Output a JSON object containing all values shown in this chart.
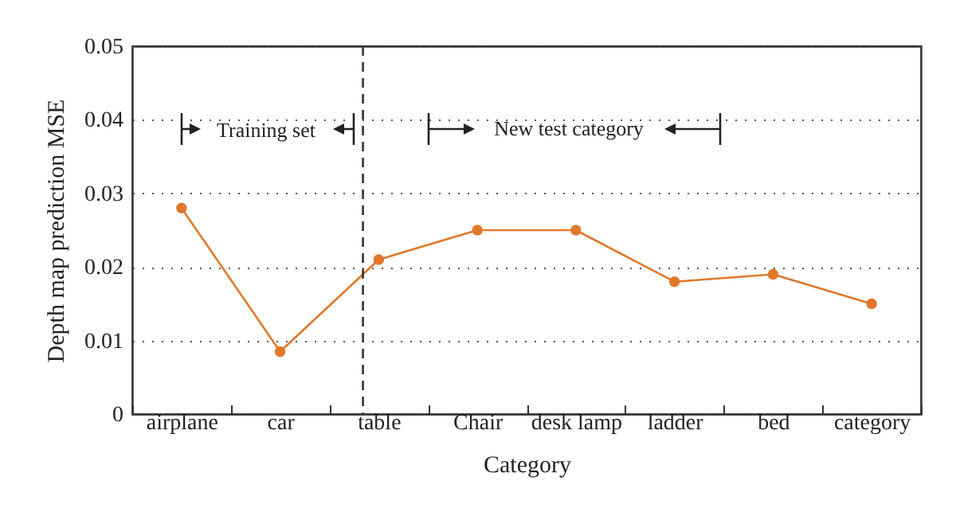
{
  "chart_data": {
    "type": "line",
    "xlabel": "Category",
    "ylabel": "Depth map prediction MSE",
    "categories": [
      "airplane",
      "car",
      "table",
      "Chair",
      "desk lamp",
      "ladder",
      "bed",
      "category"
    ],
    "series": [
      {
        "color": "#e0782a",
        "values": [
          0.028,
          0.0085,
          0.021,
          0.025,
          0.025,
          0.018,
          0.019,
          0.015
        ]
      }
    ],
    "ylim": [
      0,
      0.05
    ],
    "yticks": [
      0,
      0.01,
      0.02,
      0.03,
      0.04,
      0.05
    ],
    "grid": "y",
    "marker": "circle",
    "line_style": "solid",
    "ref_lines": [
      {
        "axis": "x",
        "value": "table",
        "color": "#333333",
        "line_style": "dashed"
      }
    ],
    "annotations": [
      "Training set",
      "New test category"
    ]
  }
}
